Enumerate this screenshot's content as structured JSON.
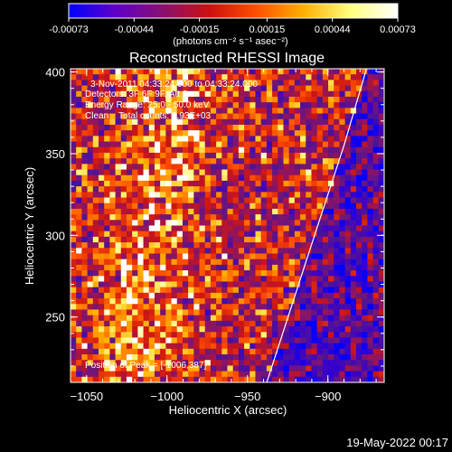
{
  "colorbar": {
    "ticks": [
      "-0.00073",
      "-0.00044",
      "-0.00015",
      "0.00015",
      "0.00044",
      "0.00073"
    ],
    "tick_values": [
      -0.00073,
      -0.00044,
      -0.00015,
      0.00015,
      0.00044,
      0.00073
    ],
    "units": "(photons cm⁻² s⁻¹ asec⁻²)",
    "colors": [
      "#0000ff",
      "#6000c8",
      "#8a1070",
      "#cc1010",
      "#ff5000",
      "#ffb000",
      "#ffff80",
      "#ffffff"
    ]
  },
  "chart_data": {
    "type": "heatmap",
    "title": "Reconstructed RHESSI Image",
    "xlabel": "Heliocentric X (arcsec)",
    "ylabel": "Heliocentric Y (arcsec)",
    "xlim": [
      -1060,
      -865
    ],
    "ylim": [
      210,
      402
    ],
    "x_ticks": [
      -1050,
      -1000,
      -950,
      -900
    ],
    "y_ticks": [
      250,
      300,
      350,
      400
    ],
    "limb_line": {
      "x": [
        -938,
        -905,
        -890,
        -876
      ],
      "y": [
        210,
        310,
        355,
        402
      ]
    },
    "value_range": [
      -0.00073,
      0.00073
    ],
    "annotations": [
      "3-Nov-2011 04:33:24.000 to 04:33:24.000",
      "Detectors: 3F 6F 9F, Att 0",
      "Energy Range: 25.0 - 50.0 keV",
      "Clean    Total counts: 3.93E+03"
    ],
    "peak_label": "Position of Peak = [-1006,387]"
  },
  "footer": {
    "date": "19-May-2022 00:17"
  }
}
